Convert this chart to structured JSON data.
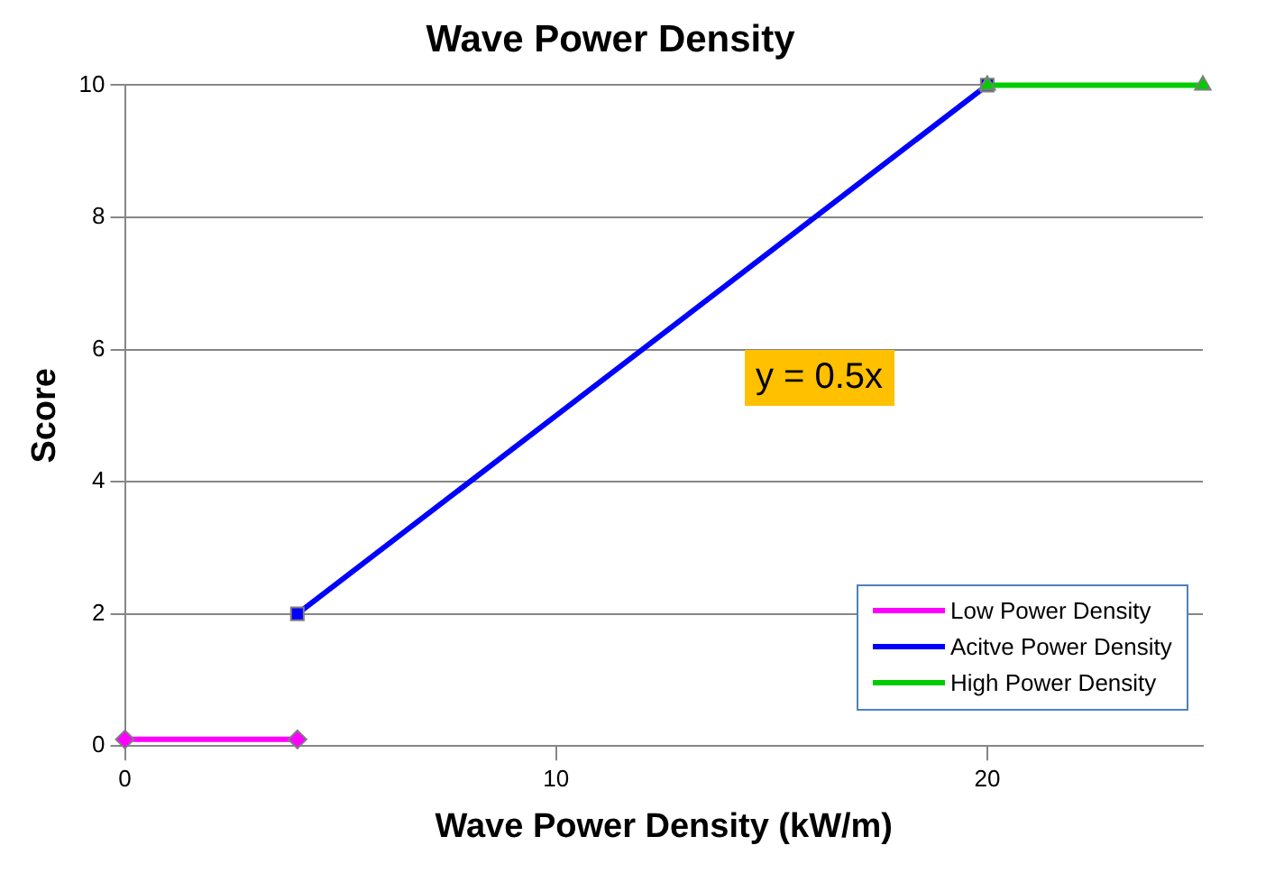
{
  "chart_data": {
    "type": "line",
    "title": "Wave Power Density",
    "xlabel": "Wave Power Density (kW/m)",
    "ylabel": "Score",
    "xlim": [
      0,
      25
    ],
    "xticks": [
      0,
      10,
      20
    ],
    "ylim": [
      0,
      10
    ],
    "yticks": [
      0,
      2,
      4,
      6,
      8,
      10
    ],
    "grid": "y",
    "legend": "bottom right",
    "annotations": [
      "y = 0.5x"
    ],
    "series": [
      {
        "name": "Low Power Density",
        "color": "#ff00ff",
        "x": [
          0,
          4
        ],
        "values": [
          0.1,
          0.1
        ],
        "marker": "diamond"
      },
      {
        "name": "Acitve Power Density",
        "color": "#0000ff",
        "x": [
          4,
          20
        ],
        "values": [
          2,
          10
        ],
        "marker": "square"
      },
      {
        "name": "High Power Density",
        "color": "#00cc00",
        "x": [
          20,
          25
        ],
        "values": [
          10,
          10
        ],
        "marker": "triangle"
      }
    ]
  }
}
